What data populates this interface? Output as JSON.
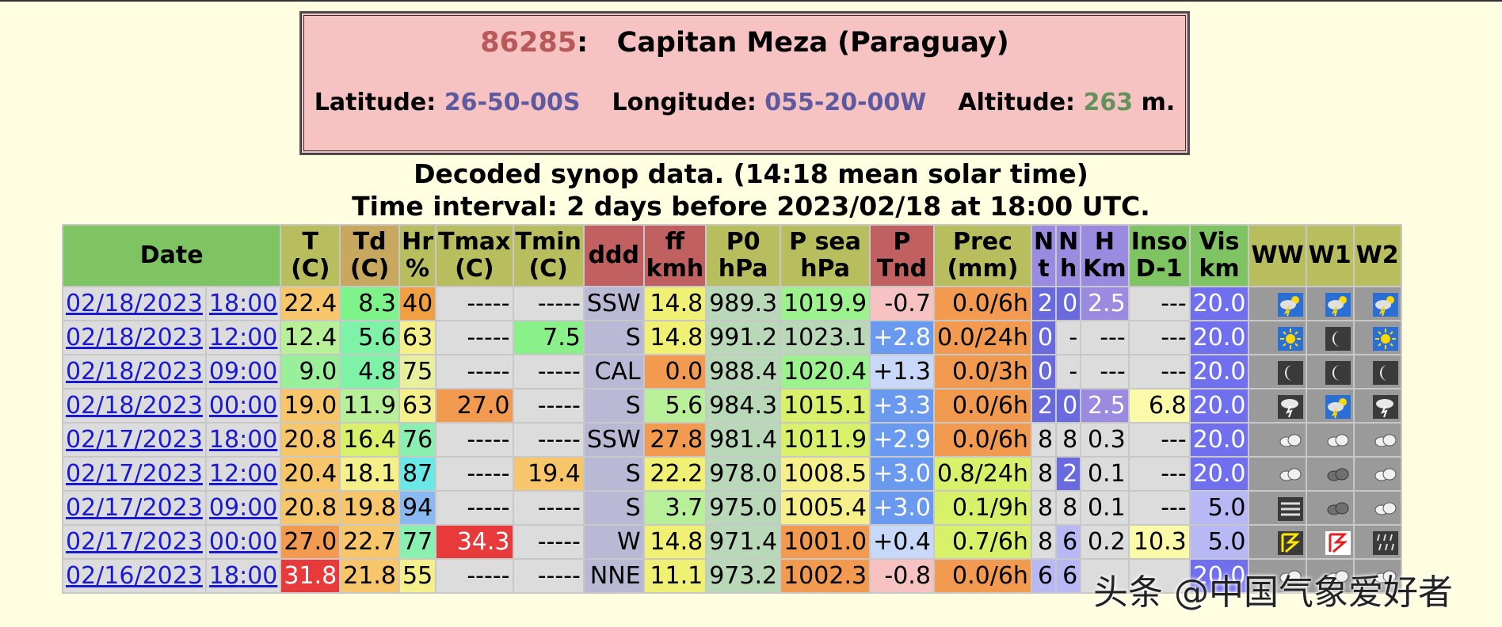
{
  "station": {
    "id": "86285",
    "id_suffix": ":",
    "name": "Capitan Meza (Paraguay)",
    "latitude_label": "Latitude:",
    "latitude": "26-50-00S",
    "longitude_label": "Longitude:",
    "longitude": "055-20-00W",
    "altitude_label": "Altitude:",
    "altitude": "263",
    "altitude_unit": "m."
  },
  "caption": {
    "line1": "Decoded synop data. (14:18 mean solar time)",
    "line2": "Time interval: 2 days before 2023/02/18 at 18:00 UTC."
  },
  "columns": [
    {
      "label": "Date",
      "color": "#7fc463"
    },
    {
      "label": "T\n(C)",
      "color": "#b8bd5e"
    },
    {
      "label": "Td\n(C)",
      "color": "#c8a85e"
    },
    {
      "label": "Hr\n%",
      "color": "#b8bd5e"
    },
    {
      "label": "Tmax\n(C)",
      "color": "#b8bd5e"
    },
    {
      "label": "Tmin\n(C)",
      "color": "#b8bd5e"
    },
    {
      "label": "ddd",
      "color": "#c06060"
    },
    {
      "label": "ff\nkmh",
      "color": "#c06060"
    },
    {
      "label": "P0\nhPa",
      "color": "#b8bd5e"
    },
    {
      "label": "P sea\nhPa",
      "color": "#b8bd5e"
    },
    {
      "label": "P\nTnd",
      "color": "#c06060"
    },
    {
      "label": "Prec\n(mm)",
      "color": "#b8bd5e"
    },
    {
      "label": "N\nt",
      "color": "#9a8ae0"
    },
    {
      "label": "N\nh",
      "color": "#9a8ae0"
    },
    {
      "label": "H\nKm",
      "color": "#9a8ae0"
    },
    {
      "label": "Inso\nD-1",
      "color": "#7fc463"
    },
    {
      "label": "Vis\nkm",
      "color": "#7fc463"
    },
    {
      "label": "WW",
      "color": "#b8bd5e"
    },
    {
      "label": "W1",
      "color": "#b8bd5e"
    },
    {
      "label": "W2",
      "color": "#b8bd5e"
    }
  ],
  "rows": [
    {
      "date": "02/18/2023",
      "time": "18:00",
      "cells": [
        [
          "22.4",
          "#f7c56a"
        ],
        [
          "8.3",
          "#7ef38a"
        ],
        [
          "40",
          "#f0a040"
        ],
        [
          "-----",
          "#dcdcdc"
        ],
        [
          "-----",
          "#dcdcdc"
        ],
        [
          "SSW",
          "#b9b9d5"
        ],
        [
          "14.8",
          "#f0f074"
        ],
        [
          "989.3",
          "#b8d8b8"
        ],
        [
          "1019.9",
          "#9cf28c"
        ],
        [
          "-0.7",
          "#f6c2c2"
        ],
        [
          "0.0/6h",
          "#f29a50"
        ],
        [
          "2",
          "#6a6adf",
          "#fff"
        ],
        [
          "0",
          "#6a6adf",
          "#fff"
        ],
        [
          "2.5",
          "#9a8ae0",
          "#fff"
        ],
        [
          "---",
          "#dcdcdc"
        ],
        [
          "20.0",
          "#7070ef",
          "#fff"
        ]
      ],
      "icons": [
        "sun-cloud-lightning-icon",
        "sun-cloud-lightning-icon",
        "sun-cloud-lightning-icon"
      ]
    },
    {
      "date": "02/18/2023",
      "time": "12:00",
      "cells": [
        [
          "12.4",
          "#b8f09a"
        ],
        [
          "5.6",
          "#7ef3a8"
        ],
        [
          "63",
          "#f5f08a"
        ],
        [
          "-----",
          "#dcdcdc"
        ],
        [
          "7.5",
          "#8af08a"
        ],
        [
          "S",
          "#b9b9d5"
        ],
        [
          "14.8",
          "#f0f074"
        ],
        [
          "991.2",
          "#b8d8b8"
        ],
        [
          "1023.1",
          "#b8d8b8"
        ],
        [
          "+2.8",
          "#6a9af0",
          "#fff"
        ],
        [
          "0.0/24h",
          "#f29a50"
        ],
        [
          "0",
          "#6a6adf",
          "#fff"
        ],
        [
          "-",
          "#dcdcdc"
        ],
        [
          "---",
          "#dcdcdc"
        ],
        [
          "---",
          "#dcdcdc"
        ],
        [
          "20.0",
          "#7070ef",
          "#fff"
        ]
      ],
      "icons": [
        "sun-icon",
        "moon-icon",
        "sun-icon"
      ]
    },
    {
      "date": "02/18/2023",
      "time": "09:00",
      "cells": [
        [
          "9.0",
          "#9af09a"
        ],
        [
          "4.8",
          "#7ef3a8"
        ],
        [
          "75",
          "#e8f0a0"
        ],
        [
          "-----",
          "#dcdcdc"
        ],
        [
          "-----",
          "#dcdcdc"
        ],
        [
          "CAL",
          "#b9b9d5"
        ],
        [
          "0.0",
          "#f29a50"
        ],
        [
          "988.4",
          "#b8d8b8"
        ],
        [
          "1020.4",
          "#9cf28c"
        ],
        [
          "+1.3",
          "#c8d8f8"
        ],
        [
          "0.0/3h",
          "#f29a50"
        ],
        [
          "0",
          "#6a6adf",
          "#fff"
        ],
        [
          "-",
          "#dcdcdc"
        ],
        [
          "---",
          "#dcdcdc"
        ],
        [
          "---",
          "#dcdcdc"
        ],
        [
          "20.0",
          "#7070ef",
          "#fff"
        ]
      ],
      "icons": [
        "moon-icon",
        "moon-icon",
        "moon-icon"
      ]
    },
    {
      "date": "02/18/2023",
      "time": "00:00",
      "cells": [
        [
          "19.0",
          "#f7c56a"
        ],
        [
          "11.9",
          "#b8f09a"
        ],
        [
          "63",
          "#f5f08a"
        ],
        [
          "27.0",
          "#f29a50"
        ],
        [
          "-----",
          "#dcdcdc"
        ],
        [
          "S",
          "#b9b9d5"
        ],
        [
          "5.6",
          "#b8f09a"
        ],
        [
          "984.3",
          "#b8d8b8"
        ],
        [
          "1015.1",
          "#d8f06a"
        ],
        [
          "+3.3",
          "#6a9af0",
          "#fff"
        ],
        [
          "0.0/6h",
          "#f29a50"
        ],
        [
          "2",
          "#6a6adf",
          "#fff"
        ],
        [
          "0",
          "#6a6adf",
          "#fff"
        ],
        [
          "2.5",
          "#9a8ae0",
          "#fff"
        ],
        [
          "6.8",
          "#fafaa8"
        ],
        [
          "20.0",
          "#7070ef",
          "#fff"
        ]
      ],
      "icons": [
        "cloud-lightning-icon",
        "sun-cloud-lightning-icon",
        "cloud-lightning-icon"
      ]
    },
    {
      "date": "02/17/2023",
      "time": "18:00",
      "cells": [
        [
          "20.8",
          "#f7c56a"
        ],
        [
          "16.4",
          "#d8f06a"
        ],
        [
          "76",
          "#8af0b0"
        ],
        [
          "-----",
          "#dcdcdc"
        ],
        [
          "-----",
          "#dcdcdc"
        ],
        [
          "SSW",
          "#b9b9d5"
        ],
        [
          "27.8",
          "#f29a50"
        ],
        [
          "981.4",
          "#b8d8b8"
        ],
        [
          "1011.9",
          "#d8f06a"
        ],
        [
          "+2.9",
          "#6a9af0",
          "#fff"
        ],
        [
          "0.0/6h",
          "#f29a50"
        ],
        [
          "8",
          "#dcdcdc"
        ],
        [
          "8",
          "#dcdcdc"
        ],
        [
          "0.3",
          "#dcdcdc"
        ],
        [
          "---",
          "#dcdcdc"
        ],
        [
          "20.0",
          "#7070ef",
          "#fff"
        ]
      ],
      "icons": [
        "cloud-icon",
        "cloud-icon",
        "cloud-icon"
      ]
    },
    {
      "date": "02/17/2023",
      "time": "12:00",
      "cells": [
        [
          "20.4",
          "#f7c56a"
        ],
        [
          "18.1",
          "#f5f08a"
        ],
        [
          "87",
          "#6ae8e8"
        ],
        [
          "-----",
          "#dcdcdc"
        ],
        [
          "19.4",
          "#f7c56a"
        ],
        [
          "S",
          "#b9b9d5"
        ],
        [
          "22.2",
          "#f0f074"
        ],
        [
          "978.0",
          "#b8d8b8"
        ],
        [
          "1008.5",
          "#f5f08a"
        ],
        [
          "+3.0",
          "#6a9af0",
          "#fff"
        ],
        [
          "0.8/24h",
          "#d8f06a"
        ],
        [
          "8",
          "#dcdcdc"
        ],
        [
          "2",
          "#6a6adf",
          "#fff"
        ],
        [
          "0.1",
          "#dcdcdc"
        ],
        [
          "---",
          "#dcdcdc"
        ],
        [
          "20.0",
          "#7070ef",
          "#fff"
        ]
      ],
      "icons": [
        "cloud-icon",
        "cloud-dark-icon",
        "cloud-icon"
      ]
    },
    {
      "date": "02/17/2023",
      "time": "09:00",
      "cells": [
        [
          "20.8",
          "#f7c56a"
        ],
        [
          "19.8",
          "#f7c56a"
        ],
        [
          "94",
          "#8ab8f0"
        ],
        [
          "-----",
          "#dcdcdc"
        ],
        [
          "-----",
          "#dcdcdc"
        ],
        [
          "S",
          "#b9b9d5"
        ],
        [
          "3.7",
          "#b8f09a"
        ],
        [
          "975.0",
          "#b8d8b8"
        ],
        [
          "1005.4",
          "#f5f08a"
        ],
        [
          "+3.0",
          "#6a9af0",
          "#fff"
        ],
        [
          "0.1/9h",
          "#d8f06a"
        ],
        [
          "8",
          "#dcdcdc"
        ],
        [
          "8",
          "#dcdcdc"
        ],
        [
          "0.1",
          "#dcdcdc"
        ],
        [
          "---",
          "#dcdcdc"
        ],
        [
          "5.0",
          "#b8b8f5"
        ]
      ],
      "icons": [
        "fog-icon",
        "cloud-dark-icon",
        "cloud-icon"
      ]
    },
    {
      "date": "02/17/2023",
      "time": "00:00",
      "cells": [
        [
          "27.0",
          "#f29a50"
        ],
        [
          "22.7",
          "#f7c56a"
        ],
        [
          "77",
          "#8af0b0"
        ],
        [
          "34.3",
          "#e83a3a",
          "#fff"
        ],
        [
          "-----",
          "#dcdcdc"
        ],
        [
          "W",
          "#b9b9d5"
        ],
        [
          "14.8",
          "#f0f074"
        ],
        [
          "971.4",
          "#b8d8b8"
        ],
        [
          "1001.0",
          "#f29a50"
        ],
        [
          "+0.4",
          "#c8d8f8"
        ],
        [
          "0.7/6h",
          "#d8f06a"
        ],
        [
          "8",
          "#dcdcdc"
        ],
        [
          "6",
          "#b8b8f5"
        ],
        [
          "0.2",
          "#dcdcdc"
        ],
        [
          "10.3",
          "#fafaa8"
        ],
        [
          "5.0",
          "#b8b8f5"
        ]
      ],
      "icons": [
        "thunderstorm-icon",
        "thunderstorm-red-icon",
        "rain-icon"
      ]
    },
    {
      "date": "02/16/2023",
      "time": "18:00",
      "cells": [
        [
          "31.8",
          "#e83a3a",
          "#fff"
        ],
        [
          "21.8",
          "#f7c56a"
        ],
        [
          "55",
          "#f5f08a"
        ],
        [
          "-----",
          "#dcdcdc"
        ],
        [
          "-----",
          "#dcdcdc"
        ],
        [
          "NNE",
          "#b9b9d5"
        ],
        [
          "11.1",
          "#f0f074"
        ],
        [
          "973.2",
          "#b8d8b8"
        ],
        [
          "1002.3",
          "#f29a50"
        ],
        [
          "-0.8",
          "#f6c2c2"
        ],
        [
          "0.0/6h",
          "#f29a50"
        ],
        [
          "6",
          "#b8b8f5"
        ],
        [
          "6",
          "#b8b8f5"
        ],
        [
          "",
          "#dcdcdc"
        ],
        [
          "",
          "#dcdcdc"
        ],
        [
          "20.0",
          "#7070ef",
          "#fff"
        ]
      ],
      "icons": [
        "cloud-icon",
        "cloud-icon",
        "cloud-icon"
      ]
    }
  ],
  "watermark": "头条 @中国气象爱好者"
}
